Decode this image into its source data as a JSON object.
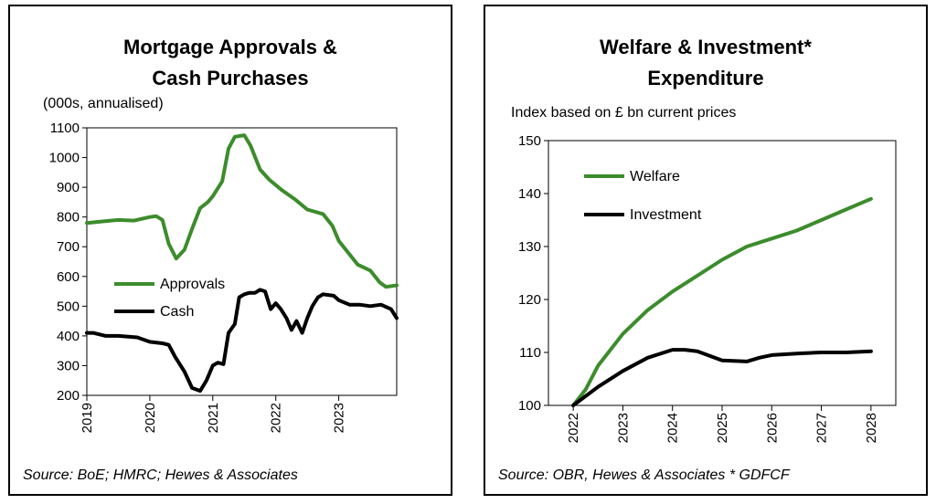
{
  "chart_data": [
    {
      "type": "line",
      "title": "Mortgage Approvals &\nCash Purchases",
      "unit_label": "(000s, annualised)",
      "source": "Source: BoE; HMRC; Hewes & Associates",
      "ylim": [
        200,
        1100
      ],
      "yticks": [
        "200",
        "300",
        "400",
        "500",
        "600",
        "700",
        "800",
        "900",
        "1000",
        "1100"
      ],
      "xlim": [
        2019.0,
        2023.92
      ],
      "xticks": [
        "2019",
        "2020",
        "2021",
        "2022",
        "2023"
      ],
      "legend_position": "middle-left",
      "series": [
        {
          "name": "Approvals",
          "color": "#3c8c2c",
          "x": [
            2019.0,
            2019.25,
            2019.5,
            2019.75,
            2020.0,
            2020.1,
            2020.2,
            2020.3,
            2020.42,
            2020.55,
            2020.67,
            2020.8,
            2020.92,
            2021.0,
            2021.15,
            2021.25,
            2021.35,
            2021.5,
            2021.6,
            2021.75,
            2021.9,
            2022.1,
            2022.3,
            2022.5,
            2022.75,
            2022.9,
            2023.0,
            2023.15,
            2023.3,
            2023.5,
            2023.65,
            2023.75,
            2023.92
          ],
          "y": [
            780,
            785,
            790,
            788,
            800,
            803,
            790,
            710,
            660,
            690,
            760,
            830,
            850,
            870,
            920,
            1030,
            1070,
            1075,
            1040,
            960,
            925,
            890,
            860,
            825,
            810,
            770,
            720,
            680,
            640,
            620,
            580,
            565,
            570
          ]
        },
        {
          "name": "Cash",
          "color": "#000000",
          "x": [
            2019.0,
            2019.1,
            2019.3,
            2019.5,
            2019.8,
            2020.0,
            2020.2,
            2020.3,
            2020.4,
            2020.55,
            2020.67,
            2020.8,
            2020.9,
            2021.0,
            2021.08,
            2021.17,
            2021.25,
            2021.35,
            2021.42,
            2021.5,
            2021.58,
            2021.67,
            2021.75,
            2021.83,
            2021.92,
            2022.0,
            2022.08,
            2022.17,
            2022.25,
            2022.33,
            2022.42,
            2022.5,
            2022.58,
            2022.67,
            2022.75,
            2022.92,
            2023.0,
            2023.17,
            2023.33,
            2023.5,
            2023.67,
            2023.83,
            2023.92
          ],
          "y": [
            410,
            410,
            400,
            400,
            395,
            380,
            375,
            370,
            330,
            280,
            225,
            215,
            250,
            300,
            310,
            305,
            410,
            440,
            530,
            540,
            545,
            545,
            555,
            550,
            490,
            510,
            490,
            460,
            420,
            450,
            410,
            460,
            500,
            530,
            540,
            535,
            520,
            505,
            505,
            500,
            505,
            490,
            460
          ]
        }
      ]
    },
    {
      "type": "line",
      "title": "Welfare & Investment*\nExpenditure",
      "unit_label": "Index based on £ bn current prices",
      "source": "Source: OBR, Hewes & Associates * GDFCF",
      "ylim": [
        100,
        150
      ],
      "yticks": [
        "100",
        "110",
        "120",
        "130",
        "140",
        "150"
      ],
      "xlim": [
        2021.5,
        2028.5
      ],
      "xticks": [
        "2022",
        "2023",
        "2024",
        "2025",
        "2026",
        "2027",
        "2028"
      ],
      "legend_position": "top-left",
      "series": [
        {
          "name": "Welfare",
          "color": "#3c8c2c",
          "x": [
            2022.0,
            2022.25,
            2022.5,
            2023.0,
            2023.5,
            2024.0,
            2024.5,
            2025.0,
            2025.5,
            2026.0,
            2026.5,
            2027.0,
            2027.5,
            2028.0
          ],
          "y": [
            100.0,
            103.0,
            107.5,
            113.5,
            118.0,
            121.5,
            124.5,
            127.5,
            130.0,
            131.5,
            133.0,
            135.0,
            137.0,
            139.0
          ]
        },
        {
          "name": "Investment",
          "color": "#000000",
          "x": [
            2022.0,
            2022.5,
            2023.0,
            2023.5,
            2024.0,
            2024.25,
            2024.5,
            2025.0,
            2025.5,
            2025.75,
            2026.0,
            2026.5,
            2027.0,
            2027.5,
            2028.0
          ],
          "y": [
            100.0,
            103.5,
            106.5,
            109.0,
            110.5,
            110.5,
            110.2,
            108.5,
            108.3,
            109.0,
            109.5,
            109.8,
            110.0,
            110.0,
            110.2
          ]
        }
      ]
    }
  ]
}
